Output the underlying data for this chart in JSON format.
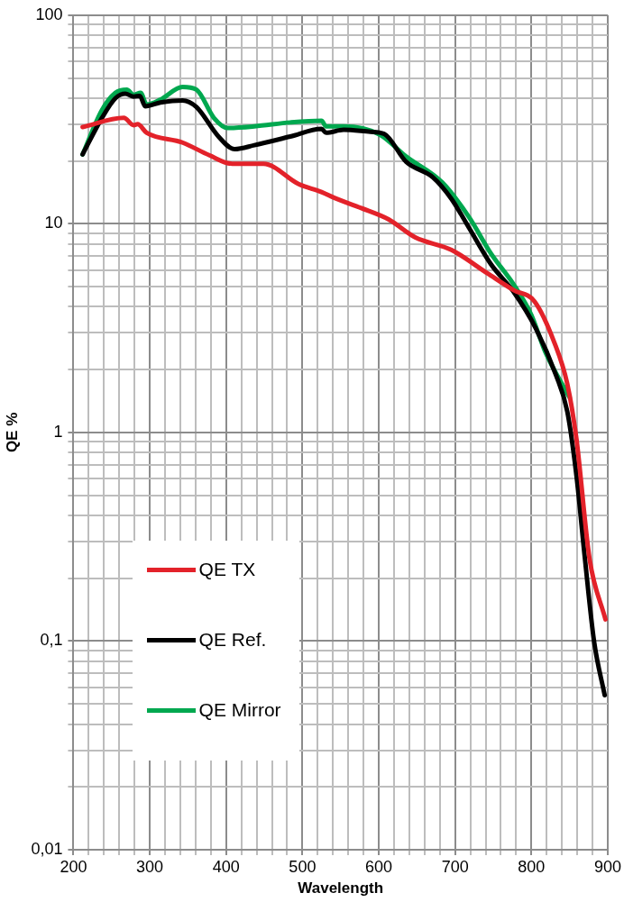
{
  "chart_data": {
    "type": "line",
    "xlabel": "Wavelength",
    "ylabel": "QE %",
    "log": "y",
    "grid": true,
    "legend": "bottom left",
    "marker": "none",
    "line_style": "solid",
    "xlim": [
      200,
      900
    ],
    "xticks": [
      200,
      {
        "value": 220,
        "label": null
      },
      {
        "value": 240,
        "label": null
      },
      {
        "value": 260,
        "label": null
      },
      {
        "value": 280,
        "label": null
      },
      300,
      {
        "value": 320,
        "label": null
      },
      {
        "value": 340,
        "label": null
      },
      {
        "value": 360,
        "label": null
      },
      {
        "value": 380,
        "label": null
      },
      400,
      {
        "value": 420,
        "label": null
      },
      {
        "value": 440,
        "label": null
      },
      {
        "value": 460,
        "label": null
      },
      {
        "value": 480,
        "label": null
      },
      500,
      {
        "value": 520,
        "label": null
      },
      {
        "value": 540,
        "label": null
      },
      {
        "value": 560,
        "label": null
      },
      {
        "value": 580,
        "label": null
      },
      600,
      {
        "value": 620,
        "label": null
      },
      {
        "value": 640,
        "label": null
      },
      {
        "value": 660,
        "label": null
      },
      {
        "value": 680,
        "label": null
      },
      700,
      {
        "value": 720,
        "label": null
      },
      {
        "value": 740,
        "label": null
      },
      {
        "value": 760,
        "label": null
      },
      {
        "value": 780,
        "label": null
      },
      800,
      {
        "value": 820,
        "label": null
      },
      {
        "value": 840,
        "label": null
      },
      {
        "value": 860,
        "label": null
      },
      {
        "value": 880,
        "label": null
      },
      900
    ],
    "ylim": [
      0.01,
      100
    ],
    "yticks": [
      {
        "value": 0.01,
        "label": "0,01"
      },
      {
        "value": 0.1,
        "label": "0,1"
      },
      1,
      10,
      100
    ],
    "series": [
      {
        "name": "QE TX",
        "color": "#e3222a",
        "x": [
          212,
          266,
          279,
          284,
          296,
          343,
          378,
          408,
          449,
          495,
          525,
          542,
          577,
          613,
          648,
          695,
          742,
          777,
          804,
          830,
          847,
          859,
          876,
          897
        ],
        "values": [
          29.1,
          32.2,
          29.7,
          30,
          27.3,
          24.5,
          21.3,
          19.4,
          19.4,
          15.5,
          14.2,
          13.3,
          11.9,
          10.5,
          8.6,
          7.5,
          5.8,
          4.8,
          4.25,
          2.7,
          1.71,
          0.93,
          0.25,
          0.127
        ]
      },
      {
        "name": "QE Ref.",
        "color": "#000000",
        "x": [
          212,
          237,
          255,
          268,
          279,
          287,
          294,
          314,
          343,
          361,
          390,
          411,
          437,
          484,
          525,
          531,
          554,
          589,
          607,
          636,
          671,
          695,
          718,
          747,
          777,
          806,
          832,
          847,
          859,
          870,
          882,
          896
        ],
        "values": [
          21.5,
          32,
          40,
          42,
          40.7,
          41,
          36.6,
          38.1,
          39,
          36.3,
          26.2,
          22.8,
          23.8,
          26.2,
          28.5,
          27.3,
          28.2,
          27.6,
          27,
          19.8,
          16.7,
          13.2,
          9.6,
          6.4,
          4.7,
          3.14,
          1.89,
          1.26,
          0.62,
          0.25,
          0.1,
          0.055
        ]
      },
      {
        "name": "QE Mirror",
        "color": "#00a84f",
        "x": [
          212,
          237,
          255,
          270,
          279,
          288,
          296,
          314,
          343,
          361,
          384,
          402,
          437,
          484,
          525,
          531,
          554,
          601,
          636,
          683,
          718,
          747,
          777,
          800,
          818,
          850
        ],
        "values": [
          21.5,
          34.9,
          42.4,
          43.9,
          41.5,
          42.4,
          37.3,
          39.4,
          45.3,
          44,
          32.2,
          28.8,
          29.3,
          30.6,
          31.2,
          29.3,
          29.3,
          26.8,
          21,
          15.8,
          10.8,
          7.2,
          5.1,
          3.65,
          2.44,
          1.47
        ]
      }
    ]
  }
}
